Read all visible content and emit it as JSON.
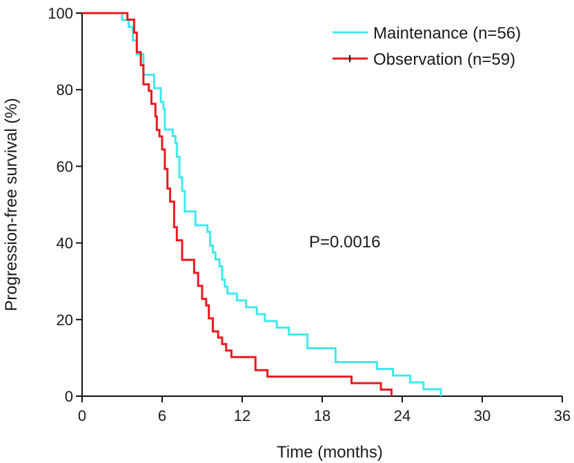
{
  "chart_data": {
    "type": "line",
    "step": true,
    "title": "",
    "xlabel": "Time (months)",
    "ylabel": "Progression-free survival (%)",
    "xlim": [
      0,
      36
    ],
    "ylim": [
      0,
      100
    ],
    "x_ticks": [
      0,
      6,
      12,
      18,
      24,
      30,
      36
    ],
    "y_ticks": [
      0,
      20,
      40,
      60,
      80,
      100
    ],
    "grid": false,
    "legend_position": "top-right",
    "annotation": "P=0.0016",
    "series": [
      {
        "name": "Maintenance (n=56)",
        "color": "#40E8EC",
        "points": [
          [
            0,
            100
          ],
          [
            3.0,
            100
          ],
          [
            3.0,
            98.2
          ],
          [
            3.5,
            98.2
          ],
          [
            3.5,
            96.4
          ],
          [
            3.8,
            96.4
          ],
          [
            3.8,
            92.9
          ],
          [
            4.1,
            92.9
          ],
          [
            4.1,
            89.3
          ],
          [
            4.6,
            89.3
          ],
          [
            4.6,
            83.9
          ],
          [
            5.4,
            83.9
          ],
          [
            5.4,
            80.4
          ],
          [
            5.9,
            80.4
          ],
          [
            5.9,
            76.8
          ],
          [
            6.1,
            76.8
          ],
          [
            6.1,
            75.0
          ],
          [
            6.2,
            75.0
          ],
          [
            6.2,
            69.6
          ],
          [
            6.8,
            69.6
          ],
          [
            6.8,
            67.9
          ],
          [
            7.0,
            67.9
          ],
          [
            7.0,
            66.1
          ],
          [
            7.1,
            66.1
          ],
          [
            7.1,
            62.5
          ],
          [
            7.3,
            62.5
          ],
          [
            7.3,
            57.1
          ],
          [
            7.5,
            57.1
          ],
          [
            7.5,
            53.6
          ],
          [
            7.7,
            53.6
          ],
          [
            7.7,
            48.2
          ],
          [
            8.5,
            48.2
          ],
          [
            8.5,
            44.6
          ],
          [
            9.4,
            44.6
          ],
          [
            9.4,
            42.9
          ],
          [
            9.6,
            42.9
          ],
          [
            9.6,
            39.3
          ],
          [
            9.8,
            39.3
          ],
          [
            9.8,
            37.5
          ],
          [
            10.0,
            37.5
          ],
          [
            10.0,
            35.7
          ],
          [
            10.3,
            35.7
          ],
          [
            10.3,
            33.9
          ],
          [
            10.5,
            33.9
          ],
          [
            10.5,
            30.4
          ],
          [
            10.7,
            30.4
          ],
          [
            10.7,
            28.6
          ],
          [
            10.9,
            28.6
          ],
          [
            10.9,
            26.8
          ],
          [
            11.6,
            26.8
          ],
          [
            11.6,
            25.0
          ],
          [
            12.3,
            25.0
          ],
          [
            12.3,
            23.2
          ],
          [
            13.1,
            23.2
          ],
          [
            13.1,
            21.4
          ],
          [
            13.7,
            21.4
          ],
          [
            13.7,
            19.6
          ],
          [
            14.6,
            19.6
          ],
          [
            14.6,
            17.9
          ],
          [
            15.5,
            17.9
          ],
          [
            15.5,
            16.1
          ],
          [
            16.9,
            16.1
          ],
          [
            16.9,
            12.5
          ],
          [
            19.0,
            12.5
          ],
          [
            19.0,
            8.9
          ],
          [
            22.1,
            8.9
          ],
          [
            22.1,
            7.1
          ],
          [
            23.3,
            7.1
          ],
          [
            23.3,
            5.4
          ],
          [
            24.6,
            5.4
          ],
          [
            24.6,
            3.6
          ],
          [
            25.6,
            3.6
          ],
          [
            25.6,
            1.8
          ],
          [
            26.9,
            1.8
          ],
          [
            26.9,
            0
          ]
        ]
      },
      {
        "name": "Observation (n=59)",
        "color": "#E8191E",
        "points": [
          [
            0,
            100
          ],
          [
            3.4,
            100
          ],
          [
            3.4,
            98.3
          ],
          [
            3.9,
            98.3
          ],
          [
            3.9,
            94.9
          ],
          [
            4.1,
            94.9
          ],
          [
            4.1,
            89.8
          ],
          [
            4.4,
            89.8
          ],
          [
            4.4,
            86.4
          ],
          [
            4.6,
            86.4
          ],
          [
            4.6,
            81.4
          ],
          [
            5.0,
            81.4
          ],
          [
            5.0,
            79.7
          ],
          [
            5.2,
            79.7
          ],
          [
            5.2,
            76.3
          ],
          [
            5.5,
            76.3
          ],
          [
            5.5,
            73.0
          ],
          [
            5.6,
            73.0
          ],
          [
            5.6,
            69.5
          ],
          [
            5.8,
            69.5
          ],
          [
            5.8,
            67.8
          ],
          [
            6.0,
            67.8
          ],
          [
            6.0,
            64.4
          ],
          [
            6.2,
            64.4
          ],
          [
            6.2,
            59.3
          ],
          [
            6.4,
            59.3
          ],
          [
            6.4,
            54.2
          ],
          [
            6.6,
            54.2
          ],
          [
            6.6,
            50.8
          ],
          [
            6.9,
            50.8
          ],
          [
            6.9,
            44.1
          ],
          [
            7.1,
            44.1
          ],
          [
            7.1,
            40.7
          ],
          [
            7.5,
            40.7
          ],
          [
            7.5,
            35.6
          ],
          [
            8.4,
            35.6
          ],
          [
            8.4,
            32.2
          ],
          [
            8.7,
            32.2
          ],
          [
            8.7,
            28.8
          ],
          [
            9.0,
            28.8
          ],
          [
            9.0,
            25.4
          ],
          [
            9.3,
            25.4
          ],
          [
            9.3,
            23.7
          ],
          [
            9.5,
            23.7
          ],
          [
            9.5,
            20.3
          ],
          [
            9.8,
            20.3
          ],
          [
            9.8,
            16.9
          ],
          [
            10.2,
            16.9
          ],
          [
            10.2,
            15.3
          ],
          [
            10.5,
            15.3
          ],
          [
            10.5,
            13.6
          ],
          [
            10.8,
            13.6
          ],
          [
            10.8,
            11.9
          ],
          [
            11.2,
            11.9
          ],
          [
            11.2,
            10.2
          ],
          [
            13.0,
            10.2
          ],
          [
            13.0,
            6.8
          ],
          [
            13.9,
            6.8
          ],
          [
            13.9,
            5.1
          ],
          [
            20.2,
            5.1
          ],
          [
            20.2,
            3.4
          ],
          [
            22.4,
            3.4
          ],
          [
            22.4,
            1.7
          ],
          [
            23.2,
            1.7
          ],
          [
            23.2,
            0
          ]
        ]
      }
    ]
  }
}
